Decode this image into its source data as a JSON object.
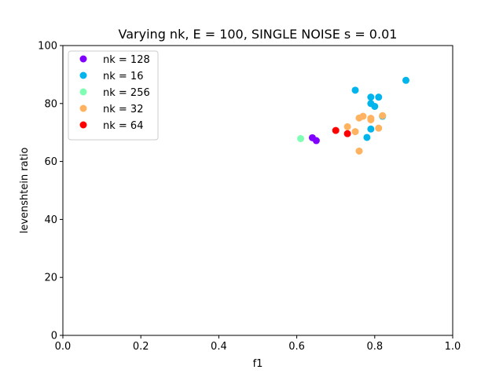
{
  "chart_data": {
    "type": "scatter",
    "title": "Varying nk, E = 100, SINGLE NOISE s = 0.01",
    "xlabel": "f1",
    "ylabel": "levenshtein ratio",
    "xlim": [
      0.0,
      1.0
    ],
    "ylim": [
      0,
      100
    ],
    "x_ticks": [
      "0.0",
      "0.2",
      "0.4",
      "0.6",
      "0.8",
      "1.0"
    ],
    "y_ticks": [
      "0",
      "20",
      "40",
      "60",
      "80",
      "100"
    ],
    "grid": false,
    "legend_position": "top-left",
    "series": [
      {
        "name": "nk = 128",
        "color": "#8000ff",
        "points": [
          [
            0.64,
            68.2
          ],
          [
            0.65,
            67.2
          ]
        ]
      },
      {
        "name": "nk = 16",
        "color": "#00b5eb",
        "points": [
          [
            0.75,
            84.6
          ],
          [
            0.79,
            82.2
          ],
          [
            0.81,
            82.2
          ],
          [
            0.79,
            80.0
          ],
          [
            0.8,
            79.0
          ],
          [
            0.88,
            88.0
          ],
          [
            0.82,
            75.6
          ],
          [
            0.79,
            71.2
          ],
          [
            0.78,
            68.3
          ]
        ]
      },
      {
        "name": "nk = 256",
        "color": "#80ffb4",
        "points": [
          [
            0.61,
            67.9
          ]
        ]
      },
      {
        "name": "nk = 32",
        "color": "#ffb360",
        "points": [
          [
            0.73,
            72.0
          ],
          [
            0.75,
            70.3
          ],
          [
            0.76,
            75.0
          ],
          [
            0.77,
            75.6
          ],
          [
            0.79,
            74.4
          ],
          [
            0.79,
            74.9
          ],
          [
            0.81,
            71.5
          ],
          [
            0.82,
            75.8
          ],
          [
            0.76,
            63.6
          ]
        ]
      },
      {
        "name": "nk = 64",
        "color": "#ff0000",
        "points": [
          [
            0.7,
            70.7
          ],
          [
            0.73,
            69.6
          ]
        ]
      }
    ]
  }
}
